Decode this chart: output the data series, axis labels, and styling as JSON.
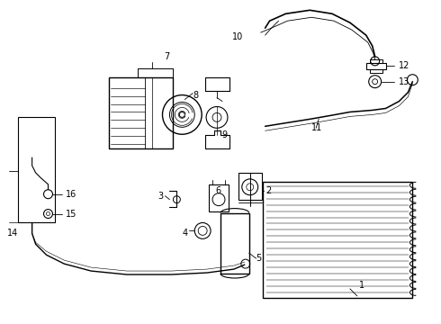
{
  "bg_color": "#ffffff",
  "line_color": "#000000",
  "figsize": [
    4.9,
    3.6
  ],
  "dpi": 100,
  "label_positions": [
    [
      "1",
      400,
      42,
      "left"
    ],
    [
      "2",
      296,
      148,
      "left"
    ],
    [
      "3",
      181,
      142,
      "right"
    ],
    [
      "4",
      208,
      100,
      "right"
    ],
    [
      "5",
      284,
      72,
      "left"
    ],
    [
      "6",
      239,
      148,
      "left"
    ],
    [
      "7",
      185,
      298,
      "center"
    ],
    [
      "8",
      214,
      255,
      "left"
    ],
    [
      "9",
      246,
      210,
      "left"
    ],
    [
      "10",
      270,
      320,
      "right"
    ],
    [
      "11",
      353,
      218,
      "center"
    ],
    [
      "12",
      444,
      288,
      "left"
    ],
    [
      "13",
      444,
      270,
      "left"
    ],
    [
      "14",
      6,
      100,
      "left"
    ],
    [
      "15",
      72,
      122,
      "left"
    ],
    [
      "16",
      72,
      144,
      "left"
    ]
  ]
}
